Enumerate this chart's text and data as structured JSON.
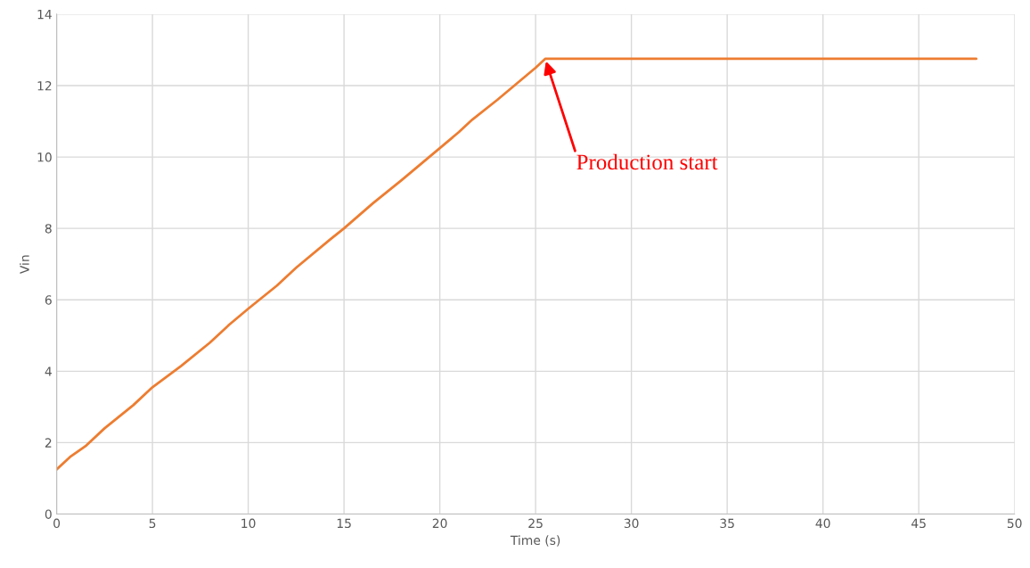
{
  "chart_data": {
    "type": "line",
    "xlabel": "Time (s)",
    "ylabel": "Vin",
    "x": [
      0,
      0.7,
      1.5,
      2.5,
      4,
      5,
      6.5,
      8,
      9,
      10,
      11.5,
      12.5,
      14.3,
      15,
      16.5,
      18,
      19,
      20,
      21,
      21.7,
      23,
      24,
      25,
      25.5,
      48
    ],
    "series": [
      {
        "color": "#ed7d31",
        "values": [
          1.25,
          1.6,
          1.9,
          2.4,
          3.05,
          3.55,
          4.15,
          4.8,
          5.3,
          5.75,
          6.4,
          6.9,
          7.7,
          8.0,
          8.7,
          9.35,
          9.8,
          10.25,
          10.7,
          11.05,
          11.6,
          12.05,
          12.5,
          12.75,
          12.75
        ]
      }
    ],
    "xlim": [
      0,
      50
    ],
    "xticks": [
      0,
      5,
      10,
      15,
      20,
      25,
      30,
      35,
      40,
      45,
      50
    ],
    "ylim": [
      0,
      14
    ],
    "yticks": [
      0,
      2,
      4,
      6,
      8,
      10,
      12,
      14
    ],
    "grid": true,
    "marker": "none",
    "line_style": "solid",
    "legend": false,
    "annotations": [
      {
        "text": "Production start",
        "x": 25.5,
        "y": 12.75
      }
    ]
  }
}
